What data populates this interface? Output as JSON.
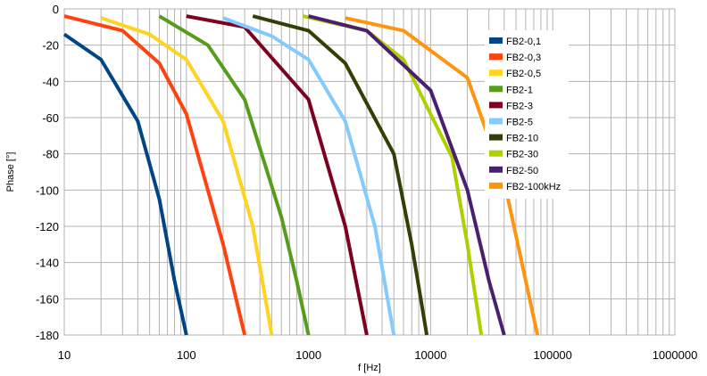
{
  "chart_data": {
    "type": "line",
    "xlabel": "f [Hz]",
    "ylabel": "Phase [°]",
    "x_scale": "log",
    "xlim": [
      10,
      1000000
    ],
    "ylim": [
      -180,
      0
    ],
    "grid": true,
    "legend_position": "top-right",
    "x_tick_labels": [
      "10",
      "100",
      "1000",
      "10000",
      "100000",
      "1000000"
    ],
    "y_tick_labels": [
      "0",
      "-20",
      "-40",
      "-60",
      "-80",
      "-100",
      "-120",
      "-140",
      "-160",
      "-180"
    ],
    "series": [
      {
        "name": "FB2-0,1",
        "color": "#004586",
        "x": [
          10,
          20,
          40,
          60,
          80,
          100
        ],
        "y": [
          -14,
          -28,
          -62,
          -105,
          -150,
          -180
        ]
      },
      {
        "name": "FB2-0,3",
        "color": "#ff420e",
        "x": [
          10,
          30,
          60,
          100,
          200,
          300
        ],
        "y": [
          -4,
          -12,
          -30,
          -58,
          -130,
          -180
        ]
      },
      {
        "name": "FB2-0,5",
        "color": "#ffd320",
        "x": [
          20,
          50,
          100,
          200,
          350,
          500
        ],
        "y": [
          -5,
          -14,
          -28,
          -62,
          -120,
          -180
        ]
      },
      {
        "name": "FB2-1",
        "color": "#579d1c",
        "x": [
          60,
          150,
          300,
          600,
          800,
          1000
        ],
        "y": [
          -4,
          -20,
          -50,
          -115,
          -150,
          -180
        ]
      },
      {
        "name": "FB2-3",
        "color": "#7e0021",
        "x": [
          100,
          300,
          1000,
          2000,
          3000
        ],
        "y": [
          -4,
          -10,
          -50,
          -120,
          -180
        ]
      },
      {
        "name": "FB2-5",
        "color": "#83caff",
        "x": [
          200,
          500,
          1000,
          2000,
          3500,
          5000
        ],
        "y": [
          -5,
          -15,
          -28,
          -62,
          -120,
          -180
        ]
      },
      {
        "name": "FB2-10",
        "color": "#314004",
        "x": [
          350,
          1000,
          2000,
          5000,
          7000,
          9300
        ],
        "y": [
          -4,
          -12,
          -30,
          -80,
          -130,
          -180
        ]
      },
      {
        "name": "FB2-30",
        "color": "#aecf00",
        "x": [
          900,
          3000,
          6000,
          15000,
          20000,
          26000
        ],
        "y": [
          -4,
          -12,
          -28,
          -82,
          -130,
          -180
        ]
      },
      {
        "name": "FB2-50",
        "color": "#4b1f6f",
        "x": [
          1000,
          3000,
          10000,
          20000,
          30000,
          40000
        ],
        "y": [
          -4,
          -12,
          -45,
          -100,
          -150,
          -180
        ]
      },
      {
        "name": "FB2-100kHz",
        "color": "#ff950e",
        "x": [
          2000,
          6000,
          20000,
          40000,
          60000,
          75000
        ],
        "y": [
          -5,
          -12,
          -38,
          -95,
          -150,
          -180
        ]
      }
    ]
  }
}
